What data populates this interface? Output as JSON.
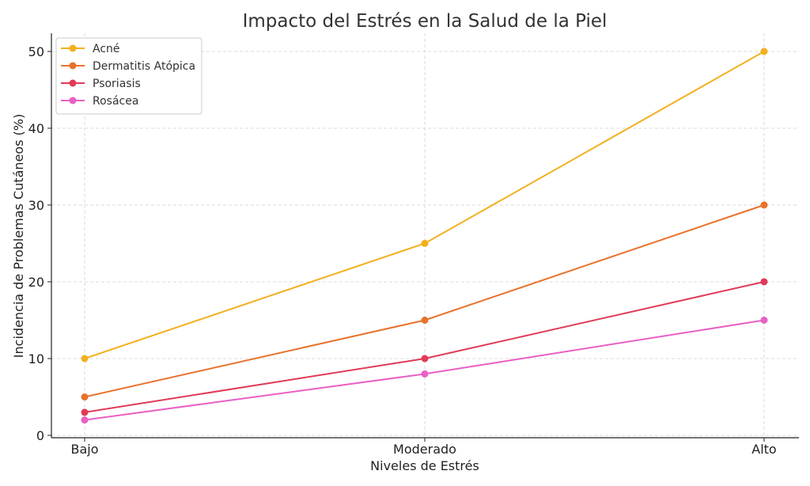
{
  "chart_data": {
    "type": "line",
    "title": "Impacto del Estrés en la Salud de la Piel",
    "xlabel": "Niveles de Estrés",
    "ylabel": "Incidencia de Problemas Cutáneos (%)",
    "categories": [
      "Bajo",
      "Moderado",
      "Alto"
    ],
    "ylim": [
      0,
      52
    ],
    "yticks": [
      0,
      10,
      20,
      30,
      40,
      50
    ],
    "grid": true,
    "legend_position": "top-left",
    "series": [
      {
        "name": "Acné",
        "color": "#f2b01e",
        "values": [
          10,
          25,
          50
        ]
      },
      {
        "name": "Dermatitis Atópica",
        "color": "#e8722c",
        "values": [
          5,
          15,
          30
        ]
      },
      {
        "name": "Psoriasis",
        "color": "#e03a58",
        "values": [
          3,
          10,
          20
        ]
      },
      {
        "name": "Rosácea",
        "color": "#ea5fc4",
        "values": [
          2,
          8,
          15
        ]
      }
    ]
  }
}
